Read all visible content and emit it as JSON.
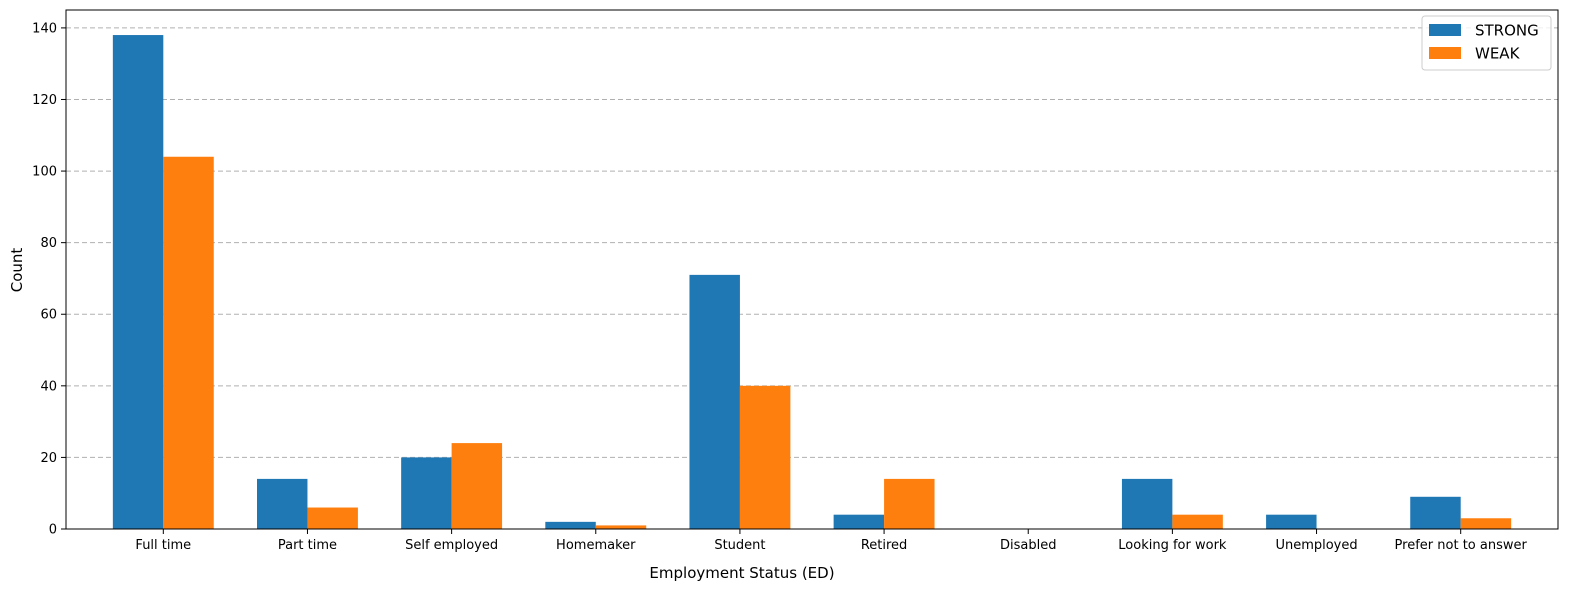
{
  "chart_data": {
    "type": "bar",
    "title": "",
    "xlabel": "Employment Status (ED)",
    "ylabel": "Count",
    "ylim": [
      0,
      145
    ],
    "yticks": [
      0,
      20,
      40,
      60,
      80,
      100,
      120,
      140
    ],
    "grid": "y-dashed",
    "legend_position": "top-right",
    "categories": [
      "Full time",
      "Part time",
      "Self employed",
      "Homemaker",
      "Student",
      "Retired",
      "Disabled",
      "Looking for work",
      "Unemployed",
      "Prefer not to answer"
    ],
    "series": [
      {
        "name": "STRONG",
        "color": "#1f77b4",
        "values": [
          138,
          14,
          20,
          2,
          71,
          4,
          0,
          14,
          4,
          9
        ]
      },
      {
        "name": "WEAK",
        "color": "#ff7f0e",
        "values": [
          104,
          6,
          24,
          1,
          40,
          14,
          0,
          4,
          0,
          3
        ]
      }
    ]
  }
}
